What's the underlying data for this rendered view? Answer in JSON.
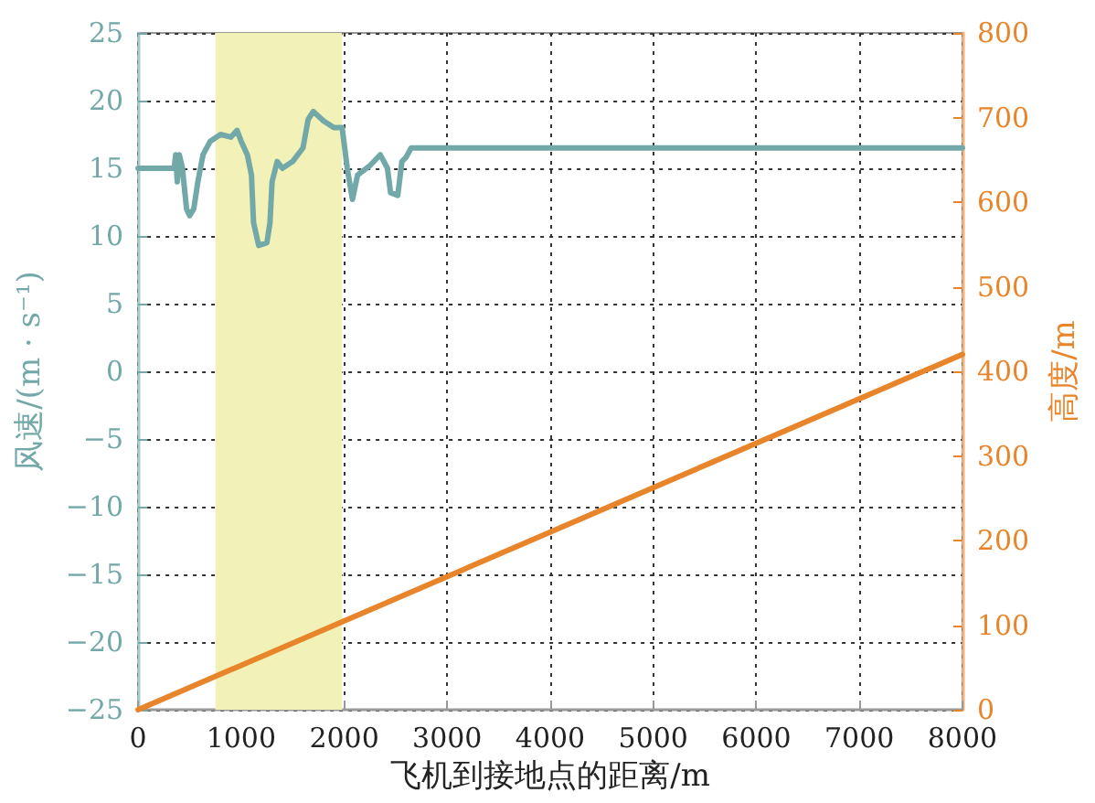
{
  "chart_data": {
    "type": "line",
    "xlabel": "飞机到接地点的距离/m",
    "ylabel": "风速/(m · s⁻¹)",
    "y2label": "高度/m",
    "series": [
      {
        "name": null,
        "color": "#72a9a8",
        "x": [
          0,
          350,
          365,
          380,
          400,
          430,
          470,
          500,
          540,
          580,
          630,
          700,
          800,
          900,
          960,
          1000,
          1060,
          1100,
          1120,
          1170,
          1250,
          1280,
          1300,
          1350,
          1400,
          1500,
          1600,
          1650,
          1700,
          1800,
          1900,
          1980,
          2030,
          2080,
          2130,
          2250,
          2350,
          2420,
          2450,
          2520,
          2560,
          2600,
          2650,
          8000
        ],
        "values": [
          15,
          15,
          16,
          14,
          16,
          15,
          12,
          11.5,
          12,
          14,
          16,
          17,
          17.5,
          17.3,
          17.8,
          17,
          16,
          14.5,
          11,
          9.3,
          9.5,
          11,
          14,
          15.5,
          15,
          15.5,
          16.5,
          18.6,
          19.2,
          18.5,
          18,
          18,
          15,
          12.7,
          14.5,
          15.2,
          16,
          15,
          13.2,
          13,
          15.5,
          15.8,
          16.5,
          16.5
        ]
      },
      {
        "name": null,
        "color": "#e8852b",
        "axis": "y2",
        "x": [
          0,
          8000
        ],
        "values": [
          0,
          420
        ]
      }
    ],
    "bands": [
      {
        "axis": "x",
        "from": 750,
        "to": 1980,
        "color": "#f2f2b8"
      }
    ],
    "xlim": [
      0,
      8000
    ],
    "xticks": [
      0,
      1000,
      2000,
      3000,
      4000,
      5000,
      6000,
      7000,
      8000
    ],
    "ylim": [
      -25,
      25
    ],
    "yticks": [
      -25,
      -20,
      -15,
      -10,
      -5,
      0,
      5,
      10,
      15,
      20,
      25
    ],
    "y2lim": [
      0,
      800
    ],
    "y2ticks": [
      0,
      100,
      200,
      300,
      400,
      500,
      600,
      700,
      800
    ],
    "grid": true,
    "marker": "none",
    "line_style": "solid"
  }
}
